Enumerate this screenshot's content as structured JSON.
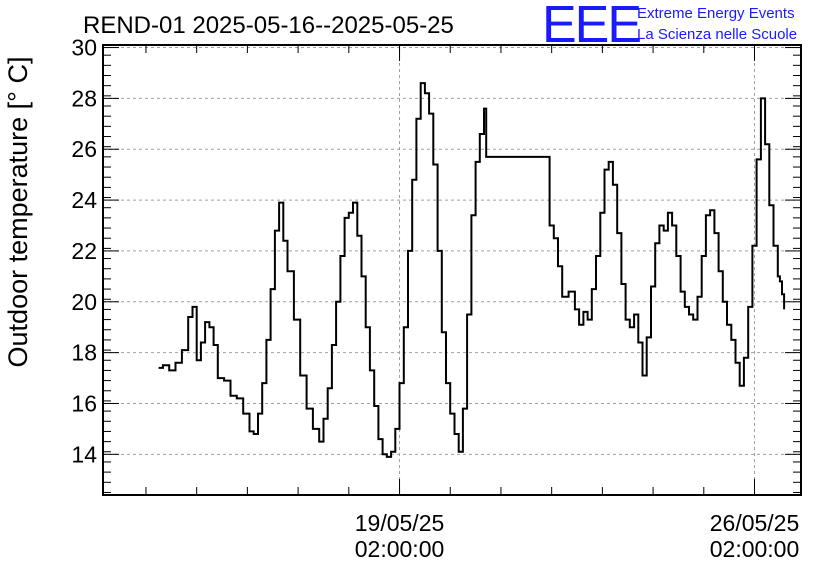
{
  "chart_data": {
    "type": "line",
    "title": "REND-01 2025-05-16--2025-05-25",
    "ylabel": "Outdoor temperature [° C]",
    "xlabel": "",
    "ylim": [
      12.4,
      30.1
    ],
    "yticks": [
      14,
      16,
      18,
      20,
      22,
      24,
      26,
      28,
      30
    ],
    "x_range": [
      "2025-05-13 05:40",
      "2025-05-27 00:00"
    ],
    "x_ticks": [
      {
        "time": "2025-05-19 02:00",
        "date_label": "19/05/25",
        "time_label": "02:00:00"
      },
      {
        "time": "2025-05-26 02:00",
        "date_label": "26/05/25",
        "time_label": "02:00:00"
      }
    ],
    "grid": true,
    "series": [
      {
        "color": "#000000",
        "points": [
          [
            "2025-05-14 08:00",
            17.4
          ],
          [
            "2025-05-14 10:00",
            17.5
          ],
          [
            "2025-05-14 13:00",
            17.3
          ],
          [
            "2025-05-14 16:00",
            17.6
          ],
          [
            "2025-05-14 19:00",
            18.1
          ],
          [
            "2025-05-14 22:00",
            19.4
          ],
          [
            "2025-05-15 00:00",
            19.8
          ],
          [
            "2025-05-15 02:00",
            17.7
          ],
          [
            "2025-05-15 04:00",
            18.4
          ],
          [
            "2025-05-15 06:00",
            19.2
          ],
          [
            "2025-05-15 08:00",
            19.0
          ],
          [
            "2025-05-15 10:00",
            18.3
          ],
          [
            "2025-05-15 12:00",
            17.0
          ],
          [
            "2025-05-15 15:00",
            16.9
          ],
          [
            "2025-05-15 18:00",
            16.3
          ],
          [
            "2025-05-15 21:00",
            16.2
          ],
          [
            "2025-05-16 00:00",
            15.6
          ],
          [
            "2025-05-16 03:00",
            14.9
          ],
          [
            "2025-05-16 05:00",
            14.8
          ],
          [
            "2025-05-16 07:00",
            15.6
          ],
          [
            "2025-05-16 09:00",
            16.8
          ],
          [
            "2025-05-16 11:00",
            18.5
          ],
          [
            "2025-05-16 13:00",
            20.5
          ],
          [
            "2025-05-16 15:00",
            22.8
          ],
          [
            "2025-05-16 17:00",
            23.9
          ],
          [
            "2025-05-16 19:00",
            22.4
          ],
          [
            "2025-05-16 21:00",
            21.2
          ],
          [
            "2025-05-17 00:00",
            19.3
          ],
          [
            "2025-05-17 03:00",
            17.1
          ],
          [
            "2025-05-17 06:00",
            15.8
          ],
          [
            "2025-05-17 09:00",
            15.0
          ],
          [
            "2025-05-17 12:00",
            14.5
          ],
          [
            "2025-05-17 14:00",
            15.4
          ],
          [
            "2025-05-17 16:00",
            16.6
          ],
          [
            "2025-05-17 18:00",
            18.3
          ],
          [
            "2025-05-17 20:00",
            20.0
          ],
          [
            "2025-05-17 22:00",
            21.8
          ],
          [
            "2025-05-18 00:00",
            23.3
          ],
          [
            "2025-05-18 02:00",
            23.5
          ],
          [
            "2025-05-18 04:00",
            23.9
          ],
          [
            "2025-05-18 06:00",
            22.6
          ],
          [
            "2025-05-18 08:00",
            21.0
          ],
          [
            "2025-05-18 10:00",
            19.0
          ],
          [
            "2025-05-18 12:00",
            17.3
          ],
          [
            "2025-05-18 14:00",
            15.9
          ],
          [
            "2025-05-18 16:00",
            14.6
          ],
          [
            "2025-05-18 18:00",
            14.0
          ],
          [
            "2025-05-18 20:00",
            13.9
          ],
          [
            "2025-05-18 22:00",
            14.1
          ],
          [
            "2025-05-19 00:00",
            15.0
          ],
          [
            "2025-05-19 02:00",
            16.8
          ],
          [
            "2025-05-19 04:00",
            19.0
          ],
          [
            "2025-05-19 06:00",
            22.0
          ],
          [
            "2025-05-19 08:00",
            24.8
          ],
          [
            "2025-05-19 10:00",
            27.2
          ],
          [
            "2025-05-19 12:00",
            28.6
          ],
          [
            "2025-05-19 14:00",
            28.2
          ],
          [
            "2025-05-19 16:00",
            27.4
          ],
          [
            "2025-05-19 18:00",
            25.4
          ],
          [
            "2025-05-19 20:00",
            22.0
          ],
          [
            "2025-05-19 22:00",
            18.8
          ],
          [
            "2025-05-20 00:00",
            16.8
          ],
          [
            "2025-05-20 02:00",
            15.6
          ],
          [
            "2025-05-20 04:00",
            14.8
          ],
          [
            "2025-05-20 06:00",
            14.1
          ],
          [
            "2025-05-20 08:00",
            15.8
          ],
          [
            "2025-05-20 10:00",
            19.5
          ],
          [
            "2025-05-20 12:00",
            23.4
          ],
          [
            "2025-05-20 14:00",
            25.5
          ],
          [
            "2025-05-20 16:00",
            26.6
          ],
          [
            "2025-05-20 18:00",
            27.6
          ],
          [
            "2025-05-20 19:00",
            25.7
          ],
          [
            "2025-05-22 00:00",
            25.7
          ],
          [
            "2025-05-22 01:00",
            23.0
          ],
          [
            "2025-05-22 03:00",
            22.5
          ],
          [
            "2025-05-22 05:00",
            21.4
          ],
          [
            "2025-05-22 07:00",
            20.2
          ],
          [
            "2025-05-22 10:00",
            20.4
          ],
          [
            "2025-05-22 13:00",
            19.7
          ],
          [
            "2025-05-22 15:00",
            19.1
          ],
          [
            "2025-05-22 17:00",
            19.6
          ],
          [
            "2025-05-22 19:00",
            19.3
          ],
          [
            "2025-05-22 21:00",
            20.5
          ],
          [
            "2025-05-22 23:00",
            21.8
          ],
          [
            "2025-05-23 01:00",
            23.5
          ],
          [
            "2025-05-23 03:00",
            25.2
          ],
          [
            "2025-05-23 05:00",
            25.5
          ],
          [
            "2025-05-23 07:00",
            24.6
          ],
          [
            "2025-05-23 09:00",
            22.7
          ],
          [
            "2025-05-23 11:00",
            20.7
          ],
          [
            "2025-05-23 13:00",
            19.3
          ],
          [
            "2025-05-23 15:00",
            19.0
          ],
          [
            "2025-05-23 17:00",
            19.5
          ],
          [
            "2025-05-23 19:00",
            18.4
          ],
          [
            "2025-05-23 21:00",
            17.1
          ],
          [
            "2025-05-23 23:00",
            18.6
          ],
          [
            "2025-05-24 01:00",
            20.6
          ],
          [
            "2025-05-24 03:00",
            22.3
          ],
          [
            "2025-05-24 05:00",
            23.0
          ],
          [
            "2025-05-24 07:00",
            22.8
          ],
          [
            "2025-05-24 09:00",
            23.5
          ],
          [
            "2025-05-24 11:00",
            23.0
          ],
          [
            "2025-05-24 13:00",
            21.8
          ],
          [
            "2025-05-24 15:00",
            20.4
          ],
          [
            "2025-05-24 17:00",
            19.8
          ],
          [
            "2025-05-24 19:00",
            19.5
          ],
          [
            "2025-05-24 21:00",
            19.3
          ],
          [
            "2025-05-24 23:00",
            20.2
          ],
          [
            "2025-05-25 01:00",
            21.8
          ],
          [
            "2025-05-25 03:00",
            23.4
          ],
          [
            "2025-05-25 05:00",
            23.6
          ],
          [
            "2025-05-25 07:00",
            22.7
          ],
          [
            "2025-05-25 09:00",
            21.2
          ],
          [
            "2025-05-25 11:00",
            20.0
          ],
          [
            "2025-05-25 13:00",
            19.1
          ],
          [
            "2025-05-25 15:00",
            18.5
          ],
          [
            "2025-05-25 17:00",
            17.6
          ],
          [
            "2025-05-25 19:00",
            16.7
          ],
          [
            "2025-05-25 21:00",
            17.8
          ],
          [
            "2025-05-25 23:00",
            19.8
          ],
          [
            "2025-05-26 01:00",
            22.2
          ],
          [
            "2025-05-26 03:00",
            25.6
          ],
          [
            "2025-05-26 05:00",
            28.0
          ],
          [
            "2025-05-26 07:00",
            26.2
          ],
          [
            "2025-05-26 09:00",
            23.8
          ],
          [
            "2025-05-26 11:00",
            22.2
          ],
          [
            "2025-05-26 13:00",
            21.0
          ],
          [
            "2025-05-26 14:00",
            20.8
          ],
          [
            "2025-05-26 15:00",
            20.3
          ],
          [
            "2025-05-26 16:00",
            19.7
          ]
        ]
      }
    ]
  },
  "logo": {
    "mark": "EEE",
    "line1": "Extreme Energy Events",
    "line2": "La Scienza nelle Scuole",
    "color": "#1a1aff"
  }
}
